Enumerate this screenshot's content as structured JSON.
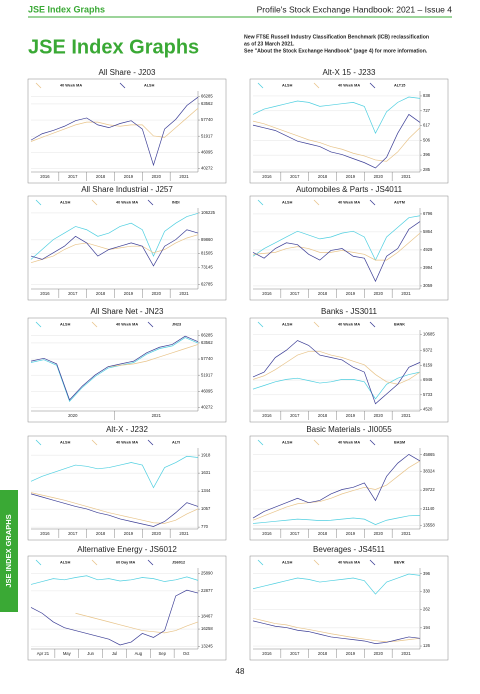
{
  "header": {
    "section": "JSE Index Graphs",
    "publication": "Profile's Stock Exchange Handbook: 2021 – Issue 4"
  },
  "title": "JSE Index Graphs",
  "note": [
    "New FTSE Russell Industry Classification Benchmark (ICB) reclassification",
    "as of 23 March 2021.",
    "See \"About the Stock Exchange Handbook\" (page 4) for more information."
  ],
  "side_tab": "JSE INDEX GRAPHS",
  "page_number": 48,
  "charts": [
    {
      "type": "line",
      "title": "All Share - J203",
      "categories": [
        "2016",
        "2017",
        "2018",
        "2019",
        "2020",
        "2021"
      ],
      "ylim": [
        39000,
        67500
      ],
      "yticks": [
        66285,
        63562,
        57740,
        51917,
        46095,
        40272
      ],
      "grid": true,
      "series": [
        {
          "name": "40 Week MA",
          "color": "#e8c48a",
          "values": [
            50000,
            51500,
            53000,
            54500,
            56000,
            57000,
            57000,
            56000,
            55500,
            56000,
            56000,
            52000,
            51500,
            55000,
            58500,
            62000
          ]
        },
        {
          "name": "ALSH",
          "color": "#3d3f96",
          "values": [
            50500,
            52800,
            54000,
            55500,
            57500,
            58500,
            56000,
            55000,
            56500,
            57500,
            54500,
            41500,
            54500,
            58000,
            63000,
            66000
          ]
        }
      ]
    },
    {
      "type": "line",
      "title": "Alt-X 15 - J233",
      "categories": [
        "2016",
        "2017",
        "2018",
        "2019",
        "2020",
        "2021"
      ],
      "ylim": [
        270,
        860
      ],
      "yticks": [
        838,
        727,
        617,
        506,
        396,
        285
      ],
      "grid": true,
      "series": [
        {
          "name": "ALSH",
          "color": "#4fcfe0",
          "values": [
            700,
            740,
            760,
            780,
            800,
            790,
            760,
            770,
            780,
            790,
            760,
            560,
            720,
            790,
            830,
            820
          ]
        },
        {
          "name": "40 Week MA",
          "color": "#e8c48a",
          "values": [
            650,
            630,
            600,
            570,
            540,
            510,
            490,
            460,
            440,
            410,
            390,
            360,
            350,
            420,
            520,
            600
          ]
        },
        {
          "name": "ALT15",
          "color": "#3d3f96",
          "values": [
            620,
            600,
            580,
            540,
            500,
            480,
            460,
            420,
            400,
            370,
            340,
            300,
            380,
            560,
            700,
            640
          ]
        }
      ]
    },
    {
      "type": "line",
      "title": "All Share Industrial - J257",
      "categories": [
        "2016",
        "2017",
        "2018",
        "2019",
        "2020",
        "2021"
      ],
      "ylim": [
        60000,
        108000
      ],
      "yticks": [
        106225,
        89860,
        81505,
        73145,
        62785
      ],
      "grid": true,
      "series": [
        {
          "name": "ALSH",
          "color": "#4fcfe0",
          "values": [
            78000,
            84000,
            90000,
            94000,
            98000,
            96000,
            92000,
            94000,
            98000,
            100000,
            96000,
            80000,
            95000,
            100000,
            104000,
            106000
          ]
        },
        {
          "name": "40 Week MA",
          "color": "#e8c48a",
          "values": [
            76000,
            78000,
            80000,
            84000,
            87000,
            88000,
            86000,
            84000,
            85000,
            86000,
            86000,
            82000,
            84000,
            88000,
            91000,
            93000
          ]
        },
        {
          "name": "INDI",
          "color": "#3d3f96",
          "values": [
            80000,
            78000,
            82000,
            86000,
            92000,
            88000,
            80000,
            84000,
            86000,
            88000,
            86000,
            74000,
            86000,
            90000,
            96000,
            94000
          ]
        }
      ]
    },
    {
      "type": "line",
      "title": "Automobiles & Parts - JS4011",
      "categories": [
        "2016",
        "2017",
        "2018",
        "2019",
        "2020",
        "2021"
      ],
      "ylim": [
        2900,
        7000
      ],
      "yticks": [
        6796,
        5864,
        4929,
        3994,
        3059
      ],
      "grid": true,
      "series": [
        {
          "name": "ALSH",
          "color": "#4fcfe0",
          "values": [
            4600,
            5000,
            5300,
            5600,
            5900,
            5700,
            5500,
            5600,
            5800,
            5900,
            5600,
            4400,
            5600,
            6100,
            6600,
            6700
          ]
        },
        {
          "name": "40 Week MA",
          "color": "#e8c48a",
          "values": [
            4700,
            4750,
            4800,
            5000,
            5100,
            5000,
            4800,
            4800,
            4900,
            4800,
            4700,
            4400,
            4400,
            4800,
            5300,
            5800
          ]
        },
        {
          "name": "AUTM",
          "color": "#3d3f96",
          "values": [
            4800,
            4500,
            5000,
            5300,
            5200,
            4700,
            4400,
            4900,
            5000,
            4600,
            4500,
            3300,
            4600,
            5000,
            6000,
            6400
          ]
        }
      ]
    },
    {
      "type": "line",
      "title": "All Share Net - JN23",
      "categories": [
        "2020",
        "2021"
      ],
      "ylim": [
        39000,
        67500
      ],
      "yticks": [
        66285,
        63562,
        57740,
        51917,
        46095,
        40272
      ],
      "grid": true,
      "series": [
        {
          "name": "ALSH",
          "color": "#4fcfe0",
          "values": [
            56500,
            57500,
            55500,
            42500,
            47500,
            51500,
            54500,
            55500,
            56500,
            59500,
            61500,
            62500,
            65500,
            63500
          ]
        },
        {
          "name": "40 Week MA",
          "color": "#e8c48a",
          "values": [
            null,
            null,
            null,
            null,
            null,
            null,
            55000,
            55500,
            56000,
            57000,
            58500,
            60000,
            61500,
            63000
          ]
        },
        {
          "name": "JN23",
          "color": "#3d3f96",
          "values": [
            57000,
            58000,
            56000,
            43000,
            48000,
            52000,
            55000,
            56000,
            57000,
            60000,
            62000,
            63000,
            66000,
            64000
          ]
        }
      ]
    },
    {
      "type": "line",
      "title": "Banks - JS3011",
      "categories": [
        "2016",
        "2017",
        "2018",
        "2019",
        "2020",
        "2021"
      ],
      "ylim": [
        4400,
        10900
      ],
      "yticks": [
        10685,
        9372,
        8159,
        6946,
        5733,
        4520
      ],
      "grid": true,
      "series": [
        {
          "name": "ALSH",
          "color": "#4fcfe0",
          "values": [
            6200,
            6500,
            6800,
            7000,
            7100,
            6900,
            6700,
            6800,
            7000,
            7000,
            6800,
            5400,
            6600,
            7100,
            7400,
            7600
          ]
        },
        {
          "name": "40 Week MA",
          "color": "#e8c48a",
          "values": [
            7000,
            7300,
            7800,
            8400,
            9000,
            9300,
            9300,
            9000,
            8800,
            8500,
            8200,
            7400,
            6800,
            6600,
            7000,
            7600
          ]
        },
        {
          "name": "BANK",
          "color": "#3d3f96",
          "values": [
            7200,
            7600,
            8800,
            9400,
            10200,
            9800,
            9000,
            8800,
            8600,
            8000,
            7600,
            5000,
            5800,
            6600,
            8000,
            8400
          ]
        }
      ]
    },
    {
      "type": "line",
      "title": "Alt-X - J232",
      "categories": [
        "2016",
        "2017",
        "2018",
        "2019",
        "2020",
        "2021"
      ],
      "ylim": [
        740,
        2000
      ],
      "yticks": [
        1918,
        1631,
        1344,
        1057,
        770
      ],
      "grid": true,
      "series": [
        {
          "name": "ALSH",
          "color": "#4fcfe0",
          "values": [
            1500,
            1580,
            1640,
            1700,
            1760,
            1740,
            1700,
            1720,
            1760,
            1800,
            1760,
            1400,
            1720,
            1800,
            1900,
            1880
          ]
        },
        {
          "name": "40 Week MA",
          "color": "#e8c48a",
          "values": [
            1320,
            1280,
            1240,
            1200,
            1150,
            1100,
            1050,
            1000,
            960,
            920,
            880,
            840,
            830,
            880,
            980,
            1060
          ]
        },
        {
          "name": "ALTI",
          "color": "#3d3f96",
          "values": [
            1300,
            1250,
            1200,
            1150,
            1100,
            1060,
            1000,
            960,
            900,
            860,
            820,
            780,
            860,
            1000,
            1160,
            1100
          ]
        }
      ]
    },
    {
      "type": "line",
      "title": "Basic Materials - JI0055",
      "categories": [
        "2016",
        "2017",
        "2018",
        "2019",
        "2020",
        "2021"
      ],
      "ylim": [
        12000,
        48000
      ],
      "yticks": [
        45865,
        38324,
        29722,
        21140,
        13558
      ],
      "grid": true,
      "series": [
        {
          "name": "ALSH",
          "color": "#4fcfe0",
          "values": [
            14500,
            15000,
            15500,
            16000,
            16500,
            16200,
            15800,
            16000,
            16500,
            17000,
            16500,
            14000,
            16000,
            17000,
            18000,
            18200
          ]
        },
        {
          "name": "40 Week MA",
          "color": "#e8c48a",
          "values": [
            16000,
            18000,
            20000,
            22000,
            23500,
            24000,
            24500,
            26000,
            28000,
            29500,
            31000,
            30000,
            32000,
            36000,
            40000,
            43000
          ]
        },
        {
          "name": "BASM",
          "color": "#3d3f96",
          "values": [
            17000,
            20000,
            22000,
            24000,
            26000,
            24000,
            25000,
            28000,
            30000,
            31000,
            33000,
            25000,
            36000,
            42000,
            46000,
            43000
          ]
        }
      ]
    },
    {
      "type": "line",
      "title": "Alternative Energy - JS6012",
      "categories": [
        "Apr 21",
        "May",
        "Jun",
        "Jul",
        "Aug",
        "Sep",
        "Oct"
      ],
      "ylim": [
        12800,
        26500
      ],
      "yticks": [
        25890,
        22877,
        18467,
        16258,
        13245
      ],
      "grid": true,
      "series": [
        {
          "name": "ALSH",
          "color": "#4fcfe0",
          "values": [
            24000,
            24500,
            25000,
            24800,
            25200,
            25500,
            24800,
            25000,
            24600,
            24800,
            25200,
            25000,
            24500,
            24800,
            25300,
            24700
          ]
        },
        {
          "name": "60 Day MA",
          "color": "#e8c48a",
          "values": [
            null,
            null,
            null,
            null,
            19000,
            18500,
            18000,
            17500,
            17000,
            16500,
            16000,
            15800,
            15600,
            16000,
            16800,
            17500
          ]
        },
        {
          "name": "JS6012",
          "color": "#3d3f96",
          "values": [
            20000,
            19000,
            17500,
            16500,
            16000,
            15500,
            15000,
            14500,
            13500,
            14000,
            15500,
            14800,
            16000,
            22000,
            23000,
            22500
          ]
        }
      ]
    },
    {
      "type": "line",
      "title": "Beverages - JS4511",
      "categories": [
        "2016",
        "2017",
        "2018",
        "2019",
        "2020",
        "2021"
      ],
      "ylim": [
        115,
        410
      ],
      "yticks": [
        396,
        330,
        262,
        194,
        126
      ],
      "grid": true,
      "series": [
        {
          "name": "ALSH",
          "color": "#4fcfe0",
          "values": [
            340,
            350,
            360,
            370,
            380,
            375,
            365,
            370,
            375,
            380,
            370,
            320,
            365,
            380,
            395,
            390
          ]
        },
        {
          "name": "40 Week MA",
          "color": "#e8c48a",
          "values": [
            230,
            220,
            210,
            205,
            195,
            188,
            180,
            172,
            165,
            158,
            152,
            146,
            142,
            145,
            150,
            155
          ]
        },
        {
          "name": "BEVR",
          "color": "#3d3f96",
          "values": [
            220,
            210,
            200,
            195,
            185,
            180,
            170,
            160,
            155,
            150,
            145,
            135,
            140,
            150,
            160,
            155
          ]
        }
      ]
    }
  ]
}
